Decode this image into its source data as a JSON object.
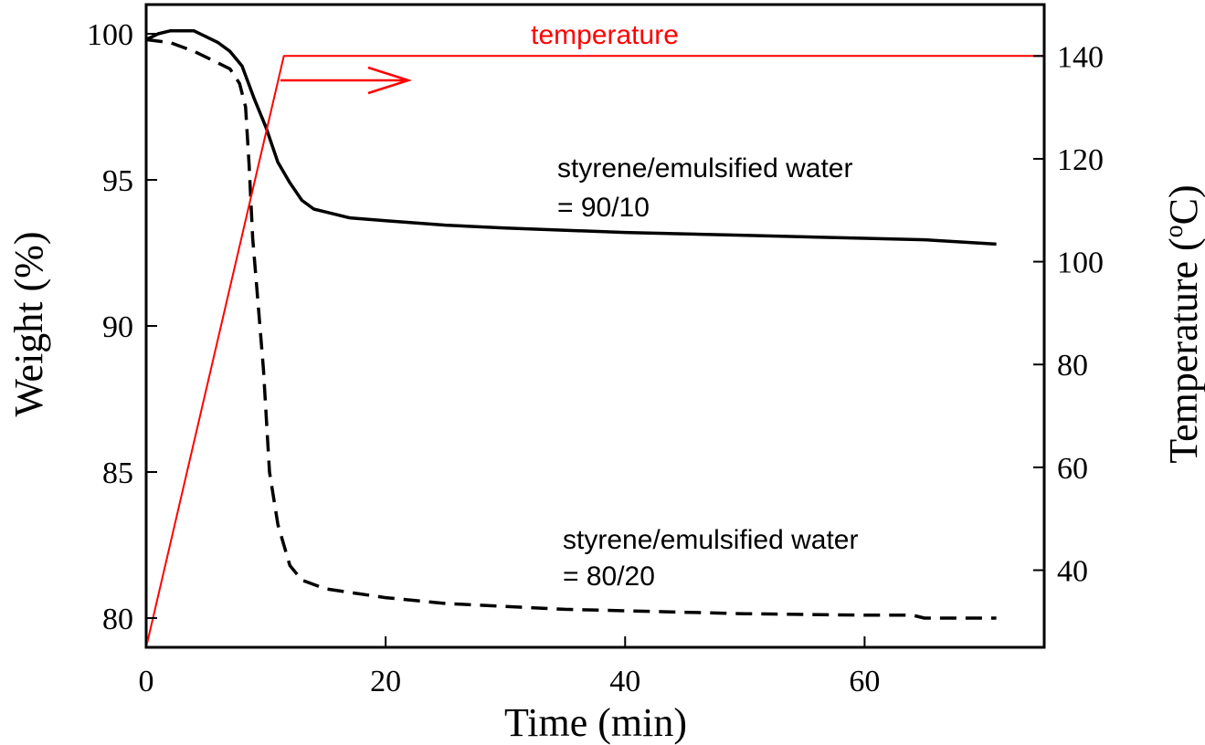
{
  "chart_data": {
    "type": "line",
    "xlabel": "Time (min)",
    "ylabel_left": "Weight (%)",
    "ylabel_right_prefix": "Temperature (",
    "ylabel_right_sup": "o",
    "ylabel_right_suffix": "C)",
    "xlim": [
      0,
      75
    ],
    "ylim_left": [
      79,
      101
    ],
    "ylim_right": [
      25,
      150
    ],
    "x_ticks": [
      0,
      20,
      40,
      60
    ],
    "y_left_ticks": [
      80,
      85,
      90,
      95,
      100
    ],
    "y_right_ticks": [
      40,
      60,
      80,
      100,
      120,
      140
    ],
    "grid": false,
    "series": [
      {
        "axis": "left",
        "color": "#000000",
        "style": "solid",
        "x": [
          0,
          1,
          2,
          3,
          4,
          5,
          6,
          7,
          8,
          9,
          10,
          11,
          12,
          13,
          14,
          15,
          17,
          20,
          25,
          30,
          40,
          50,
          60,
          65,
          71
        ],
        "y": [
          99.8,
          100.0,
          100.1,
          100.1,
          100.1,
          99.9,
          99.7,
          99.4,
          98.9,
          97.8,
          96.8,
          95.6,
          94.9,
          94.3,
          94.0,
          93.9,
          93.7,
          93.6,
          93.45,
          93.35,
          93.2,
          93.1,
          93.0,
          92.95,
          92.8
        ]
      },
      {
        "axis": "left",
        "color": "#000000",
        "style": "dashed",
        "x": [
          0,
          2,
          4,
          6,
          7,
          7.8,
          8.3,
          8.6,
          8.9,
          9.3,
          9.8,
          10.3,
          11,
          12,
          13,
          15,
          20,
          25,
          30,
          35,
          40,
          50,
          60,
          64,
          65,
          71
        ],
        "y": [
          99.8,
          99.7,
          99.4,
          99.0,
          98.8,
          98.3,
          97.5,
          95.5,
          93.0,
          91.0,
          88.5,
          85.0,
          83.2,
          81.8,
          81.3,
          81.0,
          80.7,
          80.5,
          80.4,
          80.3,
          80.25,
          80.15,
          80.1,
          80.1,
          80.0,
          80.0
        ]
      },
      {
        "axis": "right",
        "color": "#ff0000",
        "style": "solid",
        "x": [
          0,
          11.5,
          75
        ],
        "y": [
          25,
          140,
          140
        ]
      }
    ],
    "annotations": [
      {
        "text": "temperature",
        "color": "#ff0000"
      },
      {
        "text": "styrene/emulsified water",
        "color": "#000000"
      },
      {
        "text": "= 90/10",
        "color": "#000000"
      },
      {
        "text": "styrene/emulsified water",
        "color": "#000000"
      },
      {
        "text": "= 80/20",
        "color": "#000000"
      }
    ]
  }
}
